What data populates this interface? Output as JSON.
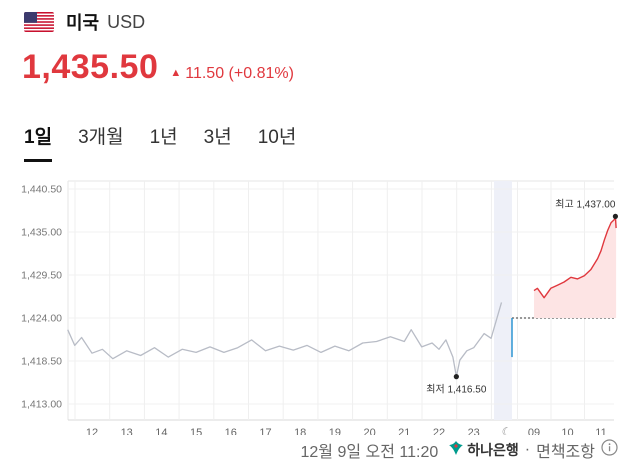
{
  "header": {
    "flag_icon": "us-flag-icon",
    "currency_name": "미국",
    "currency_code": "USD"
  },
  "price": {
    "value": "1,435.50",
    "change": "11.50 (+0.81%)",
    "direction_icon": "up-triangle-icon",
    "color": "#e0383e"
  },
  "tabs": [
    {
      "label": "1일",
      "active": true
    },
    {
      "label": "3개월",
      "active": false
    },
    {
      "label": "1년",
      "active": false
    },
    {
      "label": "3년",
      "active": false
    },
    {
      "label": "10년",
      "active": false
    }
  ],
  "chart_data": {
    "type": "line",
    "y_ticks": [
      "1,440.50",
      "1,435.00",
      "1,429.50",
      "1,424.00",
      "1,418.50",
      "1,413.00"
    ],
    "ylim": [
      1413.0,
      1440.5
    ],
    "x_ticks": [
      "12",
      "13",
      "14",
      "15",
      "16",
      "17",
      "18",
      "19",
      "20",
      "21",
      "22",
      "23",
      "09",
      "10",
      "11"
    ],
    "night_icon": "moon-icon",
    "reference_line": 1424.0,
    "high_label": "최고 1,437.00",
    "low_label": "최저 1,416.50",
    "series": [
      {
        "color": "#b8bcc6",
        "x": [
          11.3,
          11.5,
          11.7,
          12.0,
          12.3,
          12.6,
          13.0,
          13.4,
          13.8,
          14.2,
          14.6,
          15.0,
          15.4,
          15.8,
          16.2,
          16.6,
          17.0,
          17.4,
          17.8,
          18.2,
          18.6,
          19.0,
          19.4,
          19.8,
          20.2,
          20.6,
          21.0,
          21.2,
          21.5,
          21.8,
          22.0,
          22.2,
          22.4,
          22.5,
          22.6,
          22.8,
          23.0,
          23.3,
          23.5,
          23.8
        ],
        "y": [
          1422.5,
          1420.5,
          1421.5,
          1419.5,
          1420.0,
          1418.8,
          1419.8,
          1419.2,
          1420.2,
          1419.0,
          1420.0,
          1419.6,
          1420.3,
          1419.6,
          1420.2,
          1421.2,
          1419.8,
          1420.4,
          1419.9,
          1420.5,
          1419.6,
          1420.4,
          1419.8,
          1420.8,
          1421.0,
          1421.6,
          1421.0,
          1422.5,
          1420.3,
          1420.8,
          1420.0,
          1421.2,
          1419.0,
          1416.5,
          1418.6,
          1419.8,
          1420.2,
          1422.0,
          1421.4,
          1426.0
        ]
      },
      {
        "color": "#e0383e",
        "x": [
          9.0,
          9.1,
          9.3,
          9.5,
          9.7,
          9.9,
          10.1,
          10.3,
          10.5,
          10.7,
          10.9,
          11.0,
          11.1,
          11.2,
          11.3,
          11.35,
          11.4,
          11.43,
          11.45
        ],
        "y": [
          1427.5,
          1427.8,
          1426.6,
          1427.8,
          1428.2,
          1428.6,
          1429.2,
          1429.0,
          1429.4,
          1430.2,
          1431.6,
          1432.6,
          1434.0,
          1435.2,
          1436.2,
          1436.4,
          1436.6,
          1437.0,
          1435.5
        ]
      }
    ],
    "gap_segment": {
      "color": "#1f8fd0",
      "y": [
        1424.0,
        1419.0
      ]
    }
  },
  "footer": {
    "date": "12월 9일 오전 11:20",
    "bank_icon": "hana-bank-logo-icon",
    "bank": "하나은행",
    "separator": "·",
    "label": "면책조항",
    "info_icon": "info-circle-icon"
  }
}
